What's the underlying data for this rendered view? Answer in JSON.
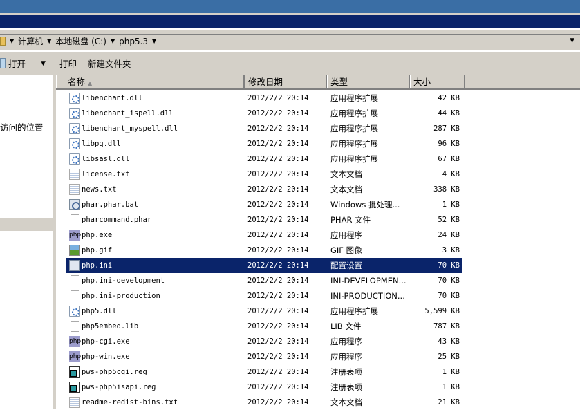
{
  "address": {
    "crumbs": [
      "计算机",
      "本地磁盘 (C:)",
      "php5.3"
    ]
  },
  "toolbar": {
    "open_label": "打开",
    "print_label": "打印",
    "new_folder_label": "新建文件夹"
  },
  "sidebar": {
    "recent_label": "访问的位置"
  },
  "columns": {
    "name": "名称",
    "date": "修改日期",
    "type": "类型",
    "size": "大小"
  },
  "selected_file": "php.ini",
  "files": [
    {
      "name": "libenchant.dll",
      "date": "2012/2/2 20:14",
      "type": "应用程序扩展",
      "size": "42 KB",
      "icon": "dll"
    },
    {
      "name": "libenchant_ispell.dll",
      "date": "2012/2/2 20:14",
      "type": "应用程序扩展",
      "size": "44 KB",
      "icon": "dll"
    },
    {
      "name": "libenchant_myspell.dll",
      "date": "2012/2/2 20:14",
      "type": "应用程序扩展",
      "size": "287 KB",
      "icon": "dll"
    },
    {
      "name": "libpq.dll",
      "date": "2012/2/2 20:14",
      "type": "应用程序扩展",
      "size": "96 KB",
      "icon": "dll"
    },
    {
      "name": "libsasl.dll",
      "date": "2012/2/2 20:14",
      "type": "应用程序扩展",
      "size": "67 KB",
      "icon": "dll"
    },
    {
      "name": "license.txt",
      "date": "2012/2/2 20:14",
      "type": "文本文档",
      "size": "4 KB",
      "icon": "txt"
    },
    {
      "name": "news.txt",
      "date": "2012/2/2 20:14",
      "type": "文本文档",
      "size": "338 KB",
      "icon": "txt"
    },
    {
      "name": "phar.phar.bat",
      "date": "2012/2/2 20:14",
      "type": "Windows 批处理...",
      "size": "1 KB",
      "icon": "bat"
    },
    {
      "name": "pharcommand.phar",
      "date": "2012/2/2 20:14",
      "type": "PHAR 文件",
      "size": "52 KB",
      "icon": "blank"
    },
    {
      "name": "php.exe",
      "date": "2012/2/2 20:14",
      "type": "应用程序",
      "size": "24 KB",
      "icon": "php"
    },
    {
      "name": "php.gif",
      "date": "2012/2/2 20:14",
      "type": "GIF 图像",
      "size": "3 KB",
      "icon": "gif"
    },
    {
      "name": "php.ini",
      "date": "2012/2/2 20:14",
      "type": "配置设置",
      "size": "70 KB",
      "icon": "ini"
    },
    {
      "name": "php.ini-development",
      "date": "2012/2/2 20:14",
      "type": "INI-DEVELOPMEN...",
      "size": "70 KB",
      "icon": "blank"
    },
    {
      "name": "php.ini-production",
      "date": "2012/2/2 20:14",
      "type": "INI-PRODUCTION...",
      "size": "70 KB",
      "icon": "blank"
    },
    {
      "name": "php5.dll",
      "date": "2012/2/2 20:14",
      "type": "应用程序扩展",
      "size": "5,599 KB",
      "icon": "dll"
    },
    {
      "name": "php5embed.lib",
      "date": "2012/2/2 20:14",
      "type": "LIB 文件",
      "size": "787 KB",
      "icon": "blank"
    },
    {
      "name": "php-cgi.exe",
      "date": "2012/2/2 20:14",
      "type": "应用程序",
      "size": "43 KB",
      "icon": "php"
    },
    {
      "name": "php-win.exe",
      "date": "2012/2/2 20:14",
      "type": "应用程序",
      "size": "25 KB",
      "icon": "php"
    },
    {
      "name": "pws-php5cgi.reg",
      "date": "2012/2/2 20:14",
      "type": "注册表项",
      "size": "1 KB",
      "icon": "reg"
    },
    {
      "name": "pws-php5isapi.reg",
      "date": "2012/2/2 20:14",
      "type": "注册表项",
      "size": "1 KB",
      "icon": "reg"
    },
    {
      "name": "readme-redist-bins.txt",
      "date": "2012/2/2 20:14",
      "type": "文本文档",
      "size": "21 KB",
      "icon": "txt"
    }
  ],
  "colors": {
    "title_bar": "#3a6ea5",
    "nav_bar": "#0a246a",
    "selection": "#0a246a",
    "chrome": "#d4d0c8"
  }
}
